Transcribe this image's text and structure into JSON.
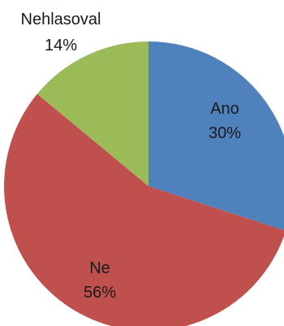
{
  "chart_data": {
    "type": "pie",
    "title": "",
    "slices": [
      {
        "label": "Ano",
        "value": 30,
        "value_label": "30%",
        "color": "#4f81bd"
      },
      {
        "label": "Ne",
        "value": 56,
        "value_label": "56%",
        "color": "#c0504d"
      },
      {
        "label": "Nehlasoval",
        "value": 14,
        "value_label": "14%",
        "color": "#9bbb59"
      }
    ],
    "start_angle_deg": 0,
    "direction": "clockwise",
    "legend": "none",
    "labels_position": "inside-and-outside"
  }
}
